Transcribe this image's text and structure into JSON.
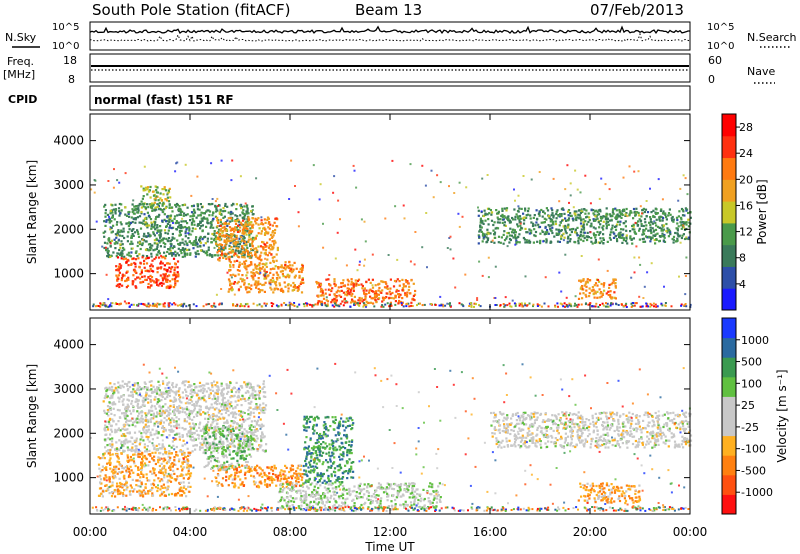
{
  "header": {
    "title": "South Pole Station (fitACF)",
    "beam": "Beam 13",
    "date": "07/Feb/2013"
  },
  "aux_panels": {
    "nsky_label": "N.Sky",
    "nsearch_label": "N.Search",
    "noise_ticks": [
      "10^5",
      "10^0"
    ],
    "freq_label": "Freq.",
    "freq_unit": "[MHz]",
    "freq_ticks": [
      "18",
      "8"
    ],
    "nave_label": "Nave",
    "nave_ticks": [
      "60",
      "0"
    ],
    "cpid_label": "CPID",
    "cpid_text": "normal (fast) 151 RF"
  },
  "colors": {
    "power_scale": [
      "#1a1aff",
      "#2d4fa8",
      "#3a7a5a",
      "#4a9a4a",
      "#c8c828",
      "#f0a020",
      "#ff7a10",
      "#ff3010",
      "#ff0000"
    ],
    "velocity_scale": [
      "#ff1010",
      "#ff5010",
      "#ff8010",
      "#ffb020",
      "#c8c8c8",
      "#c8c8c8",
      "#60c040",
      "#3a9a50",
      "#2a6aa0",
      "#1a3aff"
    ]
  },
  "chart_data": [
    {
      "type": "heatmap",
      "name": "Power",
      "title": "",
      "xlabel": "",
      "ylabel": "Slant Range [km]",
      "xlim": [
        0,
        24
      ],
      "ylim": [
        180,
        4600
      ],
      "yticks": [
        1000,
        2000,
        3000,
        4000
      ],
      "colorbar": {
        "label": "Power [dB]",
        "ticks": [
          "4",
          "8",
          "12",
          "16",
          "20",
          "24",
          "28"
        ],
        "range": [
          0,
          30
        ]
      },
      "bands": [
        {
          "t": [
            0.5,
            6.5
          ],
          "r": [
            1400,
            2600
          ],
          "value": 10
        },
        {
          "t": [
            2.0,
            3.2
          ],
          "r": [
            2500,
            3000
          ],
          "value": 14
        },
        {
          "t": [
            5.0,
            7.5
          ],
          "r": [
            1300,
            2300
          ],
          "value": 20
        },
        {
          "t": [
            1.0,
            3.5
          ],
          "r": [
            700,
            1400
          ],
          "value": 24
        },
        {
          "t": [
            5.5,
            8.5
          ],
          "r": [
            600,
            1300
          ],
          "value": 20
        },
        {
          "t": [
            9.0,
            13.0
          ],
          "r": [
            350,
            900
          ],
          "value": 22
        },
        {
          "t": [
            15.5,
            24.0
          ],
          "r": [
            1700,
            2500
          ],
          "value": 10
        },
        {
          "t": [
            19.5,
            21.0
          ],
          "r": [
            450,
            900
          ],
          "value": 20
        }
      ]
    },
    {
      "type": "heatmap",
      "name": "Velocity",
      "title": "",
      "xlabel": "Time UT",
      "ylabel": "Slant Range [km]",
      "xlim": [
        0,
        24
      ],
      "ylim": [
        180,
        4600
      ],
      "yticks": [
        1000,
        2000,
        3000,
        4000
      ],
      "xticks": [
        "00:00",
        "04:00",
        "08:00",
        "12:00",
        "16:00",
        "20:00",
        "00:00"
      ],
      "colorbar": {
        "label": "Velocity [m s⁻¹]",
        "ticks": [
          "-1000",
          "-500",
          "-100",
          "-25",
          "25",
          "100",
          "500",
          "1000"
        ],
        "range": [
          -1200,
          1200
        ]
      },
      "bands": [
        {
          "t": [
            0.5,
            7.0
          ],
          "r": [
            1600,
            3200
          ],
          "value": 0
        },
        {
          "t": [
            0.3,
            4.0
          ],
          "r": [
            600,
            1600
          ],
          "value": -400
        },
        {
          "t": [
            5.0,
            8.5
          ],
          "r": [
            800,
            1300
          ],
          "value": -500
        },
        {
          "t": [
            4.5,
            6.5
          ],
          "r": [
            1200,
            2200
          ],
          "value": 300
        },
        {
          "t": [
            7.5,
            14.0
          ],
          "r": [
            300,
            900
          ],
          "value": 150
        },
        {
          "t": [
            8.5,
            10.5
          ],
          "r": [
            900,
            2400
          ],
          "value": 600
        },
        {
          "t": [
            16.0,
            24.0
          ],
          "r": [
            1700,
            2500
          ],
          "value": 0
        },
        {
          "t": [
            19.5,
            22.0
          ],
          "r": [
            450,
            900
          ],
          "value": -400
        }
      ]
    }
  ]
}
